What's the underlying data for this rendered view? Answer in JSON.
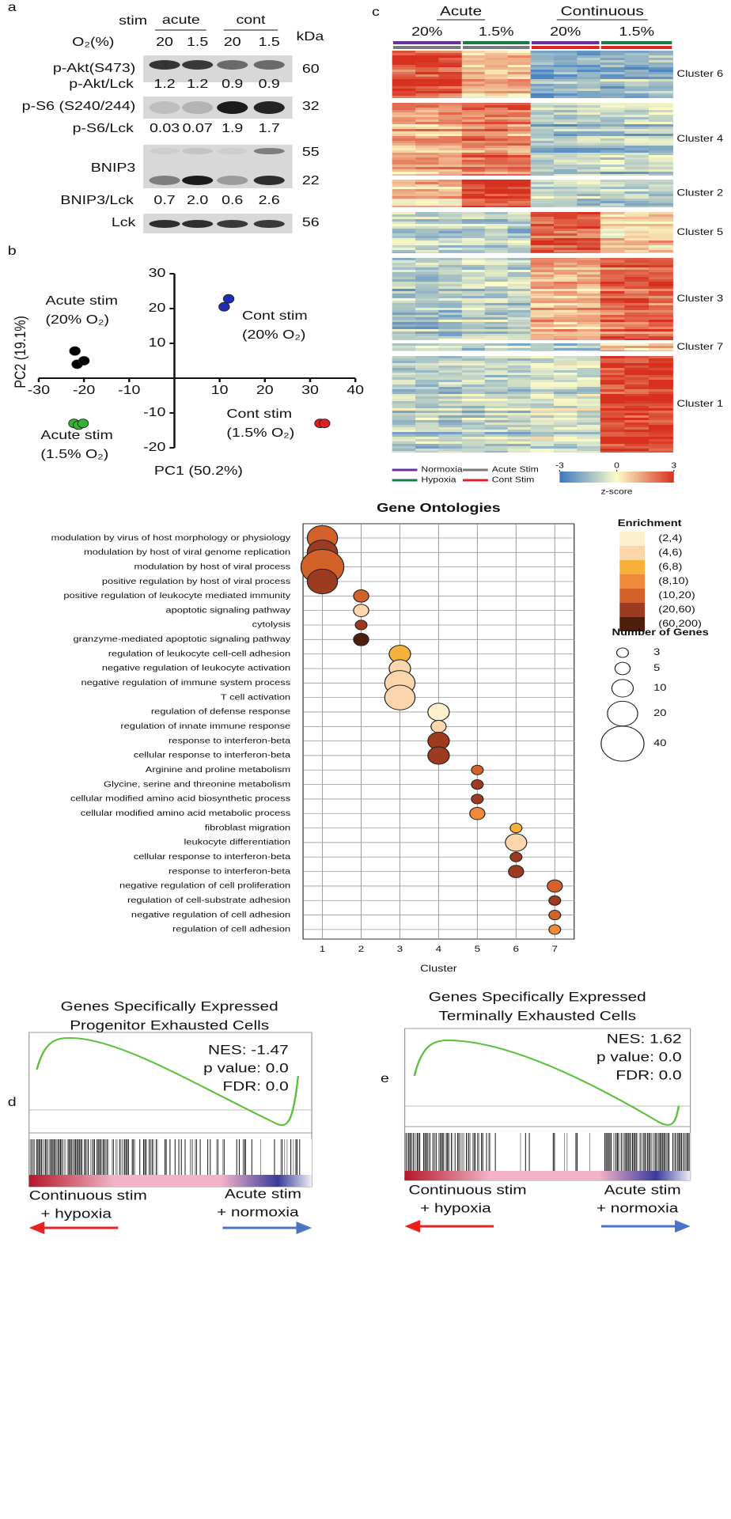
{
  "panel_labels": [
    "a",
    "b",
    "c",
    "d",
    "e"
  ],
  "blot": {
    "stim_label": "stim",
    "groups": [
      "acute",
      "cont"
    ],
    "o2_label": "O₂(%)",
    "o2_values": [
      20,
      1.5,
      20,
      1.5
    ],
    "kda_label": "kDa",
    "rows": [
      {
        "label": "p-Akt(S473)",
        "kda": [
          60
        ],
        "ratio_label": "p-Akt/Lck",
        "ratios": [
          "1.2",
          "1.2",
          "0.9",
          "0.9"
        ]
      },
      {
        "label": "p-S6 (S240/244)",
        "kda": [
          32
        ],
        "ratio_label": "p-S6/Lck",
        "ratios": [
          "0.03",
          "0.07",
          "1.9",
          "1.7"
        ]
      },
      {
        "label": "BNIP3",
        "kda": [
          55,
          22
        ],
        "ratio_label": "BNIP3/Lck",
        "ratios": [
          "0.7",
          "2.0",
          "0.6",
          "2.6"
        ]
      },
      {
        "label": "Lck",
        "kda": [
          56
        ]
      }
    ]
  },
  "chart_data": [
    {
      "type": "scatter",
      "xlabel": "PC1 (50.2%)",
      "ylabel": "PC2 (19.1%)",
      "xlim": [
        -30,
        40
      ],
      "ylim": [
        -20,
        30
      ],
      "xticks": [
        -30,
        -20,
        -10,
        10,
        20,
        30,
        40
      ],
      "yticks": [
        -20,
        -10,
        10,
        20,
        30
      ],
      "series": [
        {
          "label": [
            "Acute stim",
            "(20% O₂)"
          ],
          "color": "#000000",
          "x": [
            -22,
            -21.5,
            -20
          ],
          "values": [
            7.8,
            4,
            5
          ]
        },
        {
          "label": [
            "Cont stim",
            "(20% O₂)"
          ],
          "color": "#1f2fb5",
          "x": [
            11,
            12
          ],
          "values": [
            20.5,
            22.8
          ]
        },
        {
          "label": [
            "Acute stim",
            "(1.5%  O₂)"
          ],
          "color": "#2fb52f",
          "x": [
            -22.2,
            -21.2,
            -20.2
          ],
          "values": [
            -13,
            -13.5,
            -13
          ]
        },
        {
          "label": [
            "Cont stim",
            "(1.5% O₂)"
          ],
          "color": "#e01f1f",
          "x": [
            32.2,
            33.2
          ],
          "values": [
            -13,
            -13
          ]
        }
      ]
    },
    {
      "type": "dotplot",
      "title": "Gene Ontologies",
      "xlabel": "Cluster",
      "xlim": [
        0.5,
        7.5
      ],
      "xticks": [
        1,
        2,
        3,
        4,
        5,
        6,
        7
      ],
      "categories": [
        "modulation by virus of host morphology or physiology",
        "modulation by host of viral genome replication",
        "modulation by host of viral process",
        "positive regulation by host of viral process",
        "positive regulation of leukocyte mediated immunity",
        "apoptotic signaling pathway",
        "cytolysis",
        "granzyme-mediated apoptotic signaling pathway",
        "regulation of leukocyte cell-cell adhesion",
        "negative regulation of leukocyte activation",
        "negative regulation of immune system process",
        "T cell activation",
        "regulation of defense response",
        "regulation of innate immune response",
        "response to interferon-beta",
        "cellular response to interferon-beta",
        "Arginine and proline metabolism",
        "Glycine, serine and threonine metabolism",
        "cellular modified amino acid biosynthetic process",
        "cellular modified amino acid metabolic process",
        "fibroblast migration",
        "leukocyte differentiation",
        "cellular response to interferon-beta",
        "response to interferon-beta",
        "negative regulation of cell proliferation",
        "regulation of cell-substrate adhesion",
        "negative regulation of cell adhesion",
        "regulation of cell adhesion"
      ],
      "values": [
        1,
        1,
        1,
        1,
        2,
        2,
        2,
        2,
        3,
        3,
        3,
        3,
        4,
        4,
        4,
        4,
        5,
        5,
        5,
        5,
        6,
        6,
        6,
        6,
        7,
        7,
        7,
        7
      ],
      "sizes": [
        20,
        20,
        40,
        20,
        5,
        5,
        3,
        5,
        10,
        10,
        20,
        20,
        10,
        5,
        10,
        10,
        3,
        3,
        3,
        5,
        3,
        10,
        3,
        5,
        5,
        3,
        3,
        3
      ],
      "enrichment": [
        "(10,20)",
        "(20,60)",
        "(10,20)",
        "(20,60)",
        "(10,20)",
        "(4,6)",
        "(20,60)",
        "(60,200)",
        "(6,8)",
        "(4,6)",
        "(4,6)",
        "(4,6)",
        "(2,4)",
        "(4,6)",
        "(20,60)",
        "(20,60)",
        "(10,20)",
        "(20,60)",
        "(20,60)",
        "(8,10)",
        "(6,8)",
        "(4,6)",
        "(20,60)",
        "(20,60)",
        "(10,20)",
        "(20,60)",
        "(10,20)",
        "(8,10)"
      ],
      "enrichment_title": "Enrichment",
      "enrichment_bins": [
        {
          "label": "(2,4)",
          "color": "#fdf0cf"
        },
        {
          "label": "(4,6)",
          "color": "#fbd6ad"
        },
        {
          "label": "(6,8)",
          "color": "#f5b13a"
        },
        {
          "label": "(8,10)",
          "color": "#f08a3a"
        },
        {
          "label": "(10,20)",
          "color": "#d2622a"
        },
        {
          "label": "(20,60)",
          "color": "#9c3b1f"
        },
        {
          "label": "(60,200)",
          "color": "#4e1e0d"
        }
      ],
      "size_title": "Number of Genes",
      "size_legend": [
        3,
        5,
        10,
        20,
        40
      ]
    }
  ],
  "heatmap": {
    "groups": [
      "Acute",
      "Continuous"
    ],
    "conditions": [
      "20%",
      "1.5%",
      "20%",
      "1.5%"
    ],
    "clusters": [
      "Cluster 6",
      "Cluster 4",
      "Cluster 2",
      "Cluster 5",
      "Cluster 3",
      "Cluster 7",
      "Cluster 1"
    ],
    "legend": [
      "Normoxia",
      "Hypoxia",
      "Acute Stim",
      "Cont Stim"
    ],
    "colorbar_ticks": [
      -3,
      0,
      3
    ],
    "colorbar_label": "z-score"
  },
  "gsea": [
    {
      "title": [
        "Genes Specifically Expressed",
        "Progenitor Exhausted Cells"
      ],
      "stats": [
        "NES: -1.47",
        "p value: 0.0",
        "FDR: 0.0"
      ],
      "left_label": [
        "Continuous stim",
        "+ hypoxia"
      ],
      "right_label": [
        "Acute stim",
        "+ normoxia"
      ]
    },
    {
      "title": [
        "Genes Specifically Expressed",
        "Terminally Exhausted Cells"
      ],
      "stats": [
        "NES: 1.62",
        "p value: 0.0",
        "FDR: 0.0"
      ],
      "left_label": [
        "Continuous stim",
        "+ hypoxia"
      ],
      "right_label": [
        "Acute stim",
        "+ normoxia"
      ]
    }
  ]
}
